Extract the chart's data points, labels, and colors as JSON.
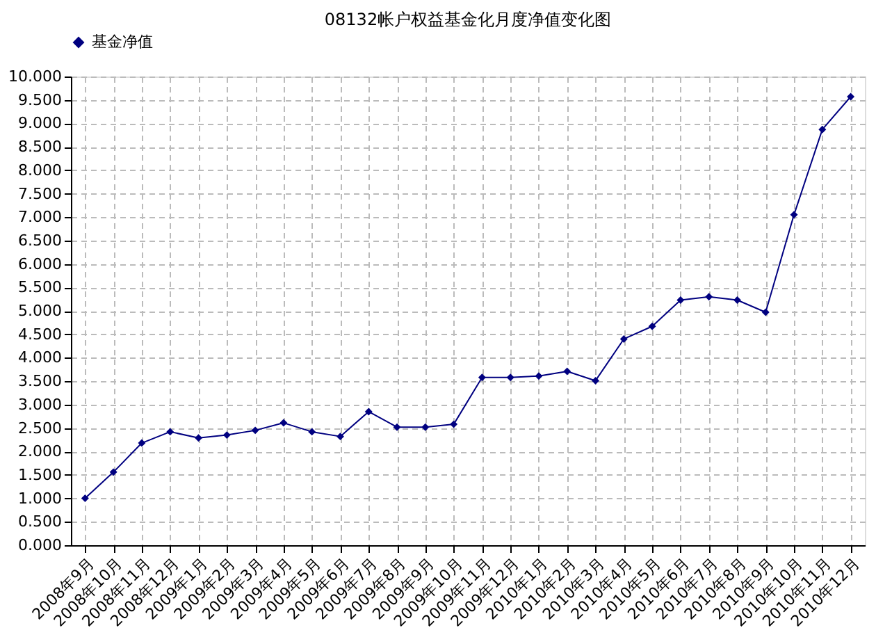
{
  "chart_data": {
    "type": "line",
    "title": "08132帐户权益基金化月度净值变化图",
    "categories": [
      "2008年9月",
      "2008年10月",
      "2008年11月",
      "2008年12月",
      "2009年1月",
      "2009年2月",
      "2009年3月",
      "2009年4月",
      "2009年5月",
      "2009年6月",
      "2009年7月",
      "2009年8月",
      "2009年9月",
      "2009年10月",
      "2009年11月",
      "2009年12月",
      "2010年1月",
      "2010年2月",
      "2010年3月",
      "2010年4月",
      "2010年5月",
      "2010年6月",
      "2010年7月",
      "2010年8月",
      "2010年9月",
      "2010年10月",
      "2010年11月",
      "2010年12月"
    ],
    "series": [
      {
        "name": "基金净值",
        "color": "#000080",
        "values": [
          1.0,
          1.56,
          2.18,
          2.42,
          2.29,
          2.35,
          2.45,
          2.61,
          2.42,
          2.32,
          2.85,
          2.52,
          2.52,
          2.58,
          3.58,
          3.58,
          3.61,
          3.71,
          3.51,
          4.4,
          4.67,
          5.23,
          5.3,
          5.23,
          4.97,
          7.05,
          8.87,
          9.57
        ]
      }
    ],
    "ylim": [
      0,
      10
    ],
    "yticks": [
      {
        "value": 0,
        "label": "0.000"
      },
      {
        "value": 0.5,
        "label": "0.500"
      },
      {
        "value": 1,
        "label": "1.000"
      },
      {
        "value": 1.5,
        "label": "1.500"
      },
      {
        "value": 2,
        "label": "2.000"
      },
      {
        "value": 2.5,
        "label": "2.500"
      },
      {
        "value": 3,
        "label": "3.000"
      },
      {
        "value": 3.5,
        "label": "3.500"
      },
      {
        "value": 4,
        "label": "4.000"
      },
      {
        "value": 4.5,
        "label": "4.500"
      },
      {
        "value": 5,
        "label": "5.000"
      },
      {
        "value": 5.5,
        "label": "5.500"
      },
      {
        "value": 6,
        "label": "6.000"
      },
      {
        "value": 6.5,
        "label": "6.500"
      },
      {
        "value": 7,
        "label": "7.000"
      },
      {
        "value": 7.5,
        "label": "7.500"
      },
      {
        "value": 8,
        "label": "8.000"
      },
      {
        "value": 8.5,
        "label": "8.500"
      },
      {
        "value": 9,
        "label": "9.000"
      },
      {
        "value": 9.5,
        "label": "9.500"
      },
      {
        "value": 10,
        "label": "10.000"
      }
    ],
    "grid": true,
    "legend": "top",
    "marker": "diamond",
    "line_style": "solid"
  }
}
